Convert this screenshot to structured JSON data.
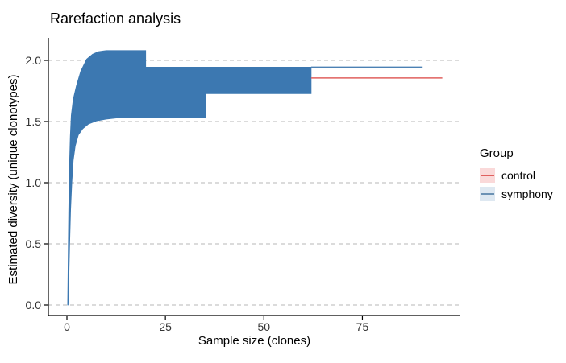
{
  "chart_data": {
    "type": "area",
    "title": "Rarefaction analysis",
    "xlabel": "Sample size (clones)",
    "ylabel": "Estimated diversity (unique clonotypes)",
    "xlim": [
      0,
      100
    ],
    "ylim": [
      0,
      2.18
    ],
    "grid": "horizontal-dashed",
    "x_ticks": {
      "values": [
        0,
        25,
        50,
        75
      ],
      "labels": [
        "0",
        "25",
        "50",
        "75"
      ]
    },
    "y_ticks": {
      "values": [
        0,
        0.5,
        1,
        1.5,
        2
      ],
      "labels": [
        "0.0",
        "0.5",
        "1.0",
        "1.5",
        "2.0"
      ]
    },
    "legend": {
      "title": "Group",
      "position": "right",
      "entries": [
        {
          "label": "control",
          "line_color": "#E0605E",
          "fill_color": "#FAD9D9"
        },
        {
          "label": "symphony",
          "line_color": "#6C92B4",
          "fill_color": "#DEE8F1"
        }
      ]
    },
    "series": [
      {
        "name": "symphony",
        "type": "ribbon",
        "color": "#3C78B1",
        "upper": [
          [
            0.18,
            0
          ],
          [
            0.3,
            0.35
          ],
          [
            0.45,
            0.75
          ],
          [
            0.62,
            1.1
          ],
          [
            0.85,
            1.38
          ],
          [
            1.1,
            1.55
          ],
          [
            1.6,
            1.68
          ],
          [
            2.4,
            1.79
          ],
          [
            3.5,
            1.91
          ],
          [
            5,
            2.01
          ],
          [
            6.5,
            2.05
          ],
          [
            8,
            2.072
          ],
          [
            10,
            2.08
          ],
          [
            20,
            2.08
          ],
          [
            20,
            1.945
          ],
          [
            62,
            1.945
          ]
        ],
        "lower": [
          [
            0.3,
            0
          ],
          [
            0.42,
            0.12
          ],
          [
            0.55,
            0.3
          ],
          [
            0.72,
            0.52
          ],
          [
            0.95,
            0.78
          ],
          [
            1.25,
            1.0
          ],
          [
            1.6,
            1.18
          ],
          [
            2.1,
            1.3
          ],
          [
            2.9,
            1.39
          ],
          [
            4,
            1.44
          ],
          [
            5.5,
            1.48
          ],
          [
            7.5,
            1.505
          ],
          [
            10,
            1.52
          ],
          [
            13,
            1.53
          ],
          [
            35.3,
            1.535
          ],
          [
            35.3,
            1.728
          ],
          [
            62,
            1.728
          ]
        ]
      },
      {
        "name": "symphony",
        "type": "line",
        "color": "#4C81B4",
        "points": [
          [
            62,
            1.945
          ],
          [
            90.3,
            1.945
          ]
        ]
      },
      {
        "name": "control",
        "type": "line",
        "color": "#E0605E",
        "points": [
          [
            62,
            1.856
          ],
          [
            95.3,
            1.856
          ]
        ]
      }
    ]
  }
}
